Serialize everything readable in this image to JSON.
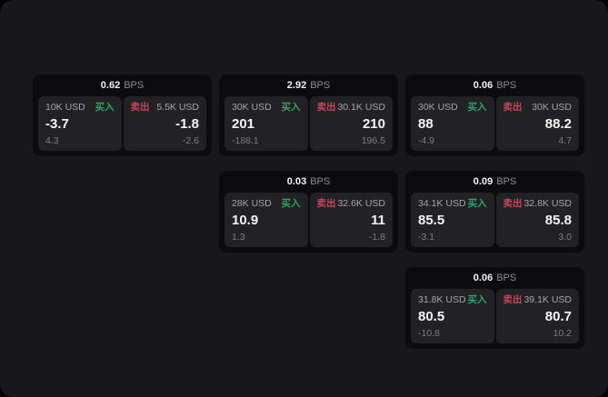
{
  "labels": {
    "buy": "买入",
    "sell": "卖出",
    "bps_suffix": "BPS"
  },
  "colors": {
    "buy_green": "#2ea36a",
    "sell_red": "#c4465e",
    "background": "#18181a",
    "card_background": "#0c0c0e",
    "panel_background": "#222225"
  },
  "cards": [
    {
      "bps": "0.62",
      "grid": {
        "row": 1,
        "col": 1
      },
      "buy": {
        "amount": "10K USD",
        "value": "-3.7",
        "sub": "4.3"
      },
      "sell": {
        "amount": "5.5K USD",
        "value": "-1.8",
        "sub": "-2.6"
      }
    },
    {
      "bps": "2.92",
      "grid": {
        "row": 1,
        "col": 2
      },
      "buy": {
        "amount": "30K USD",
        "value": "201",
        "sub": "-188.1"
      },
      "sell": {
        "amount": "30.1K USD",
        "value": "210",
        "sub": "196.5"
      }
    },
    {
      "bps": "0.06",
      "grid": {
        "row": 1,
        "col": 3
      },
      "buy": {
        "amount": "30K USD",
        "value": "88",
        "sub": "-4.9"
      },
      "sell": {
        "amount": "30K USD",
        "value": "88.2",
        "sub": "4.7"
      }
    },
    {
      "bps": "0.03",
      "grid": {
        "row": 2,
        "col": 2
      },
      "buy": {
        "amount": "28K USD",
        "value": "10.9",
        "sub": "1.3"
      },
      "sell": {
        "amount": "32.6K USD",
        "value": "11",
        "sub": "-1.8"
      }
    },
    {
      "bps": "0.09",
      "grid": {
        "row": 2,
        "col": 3
      },
      "buy": {
        "amount": "34.1K USD",
        "value": "85.5",
        "sub": "-3.1"
      },
      "sell": {
        "amount": "32.8K USD",
        "value": "85.8",
        "sub": "3.0"
      }
    },
    {
      "bps": "0.06",
      "grid": {
        "row": 3,
        "col": 3
      },
      "buy": {
        "amount": "31.8K USD",
        "value": "80.5",
        "sub": "-10.8"
      },
      "sell": {
        "amount": "39.1K USD",
        "value": "80.7",
        "sub": "10.2"
      }
    }
  ]
}
